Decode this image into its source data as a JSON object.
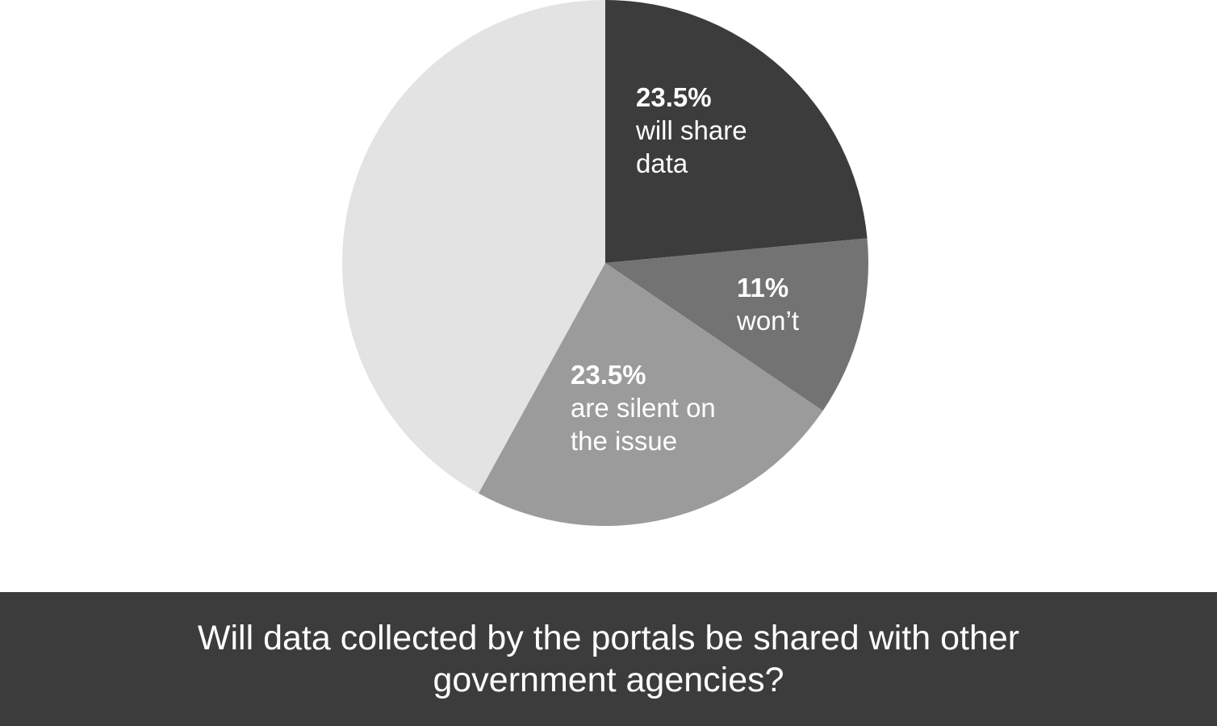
{
  "chart_data": {
    "type": "pie",
    "title": "Will data collected by the portals be shared with other government agencies?",
    "categories": [
      "will share data",
      "won’t",
      "are silent on the issue",
      null
    ],
    "values": [
      23.5,
      11,
      23.5,
      42
    ],
    "value_labels": [
      "23.5%",
      "11%",
      "23.5%",
      null
    ],
    "colors": [
      "#3c3c3c",
      "#737373",
      "#9b9b9b",
      "#e3e3e3"
    ]
  }
}
